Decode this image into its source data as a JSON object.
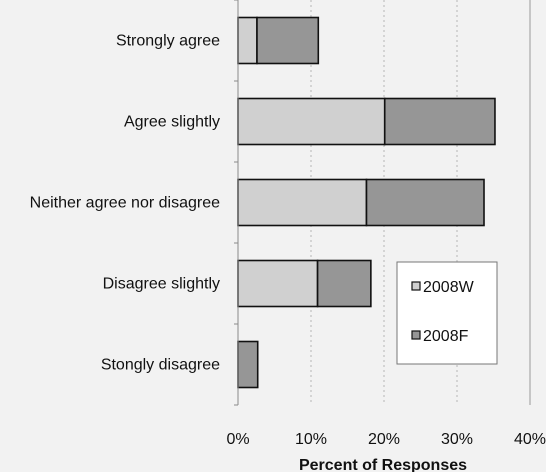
{
  "chart_data": {
    "type": "bar",
    "orientation": "horizontal",
    "stacked": true,
    "categories": [
      "Strongly agree",
      "Agree slightly",
      "Neither agree nor disagree",
      "Disagree slightly",
      "Stongly disagree"
    ],
    "series": [
      {
        "name": "2008W",
        "values": [
          2.6,
          20.1,
          17.6,
          10.9,
          0
        ],
        "color": "#d0d0d0"
      },
      {
        "name": "2008F",
        "values": [
          8.4,
          15.1,
          16.1,
          7.3,
          2.7
        ],
        "color": "#969696"
      }
    ],
    "xlabel": "Percent of Responses",
    "ylabel": "",
    "xlim": [
      0,
      40
    ],
    "xticks": [
      "0%",
      "10%",
      "20%",
      "30%",
      "40%"
    ],
    "grid": "vertical dashed",
    "legend_position": "bottom-right"
  }
}
